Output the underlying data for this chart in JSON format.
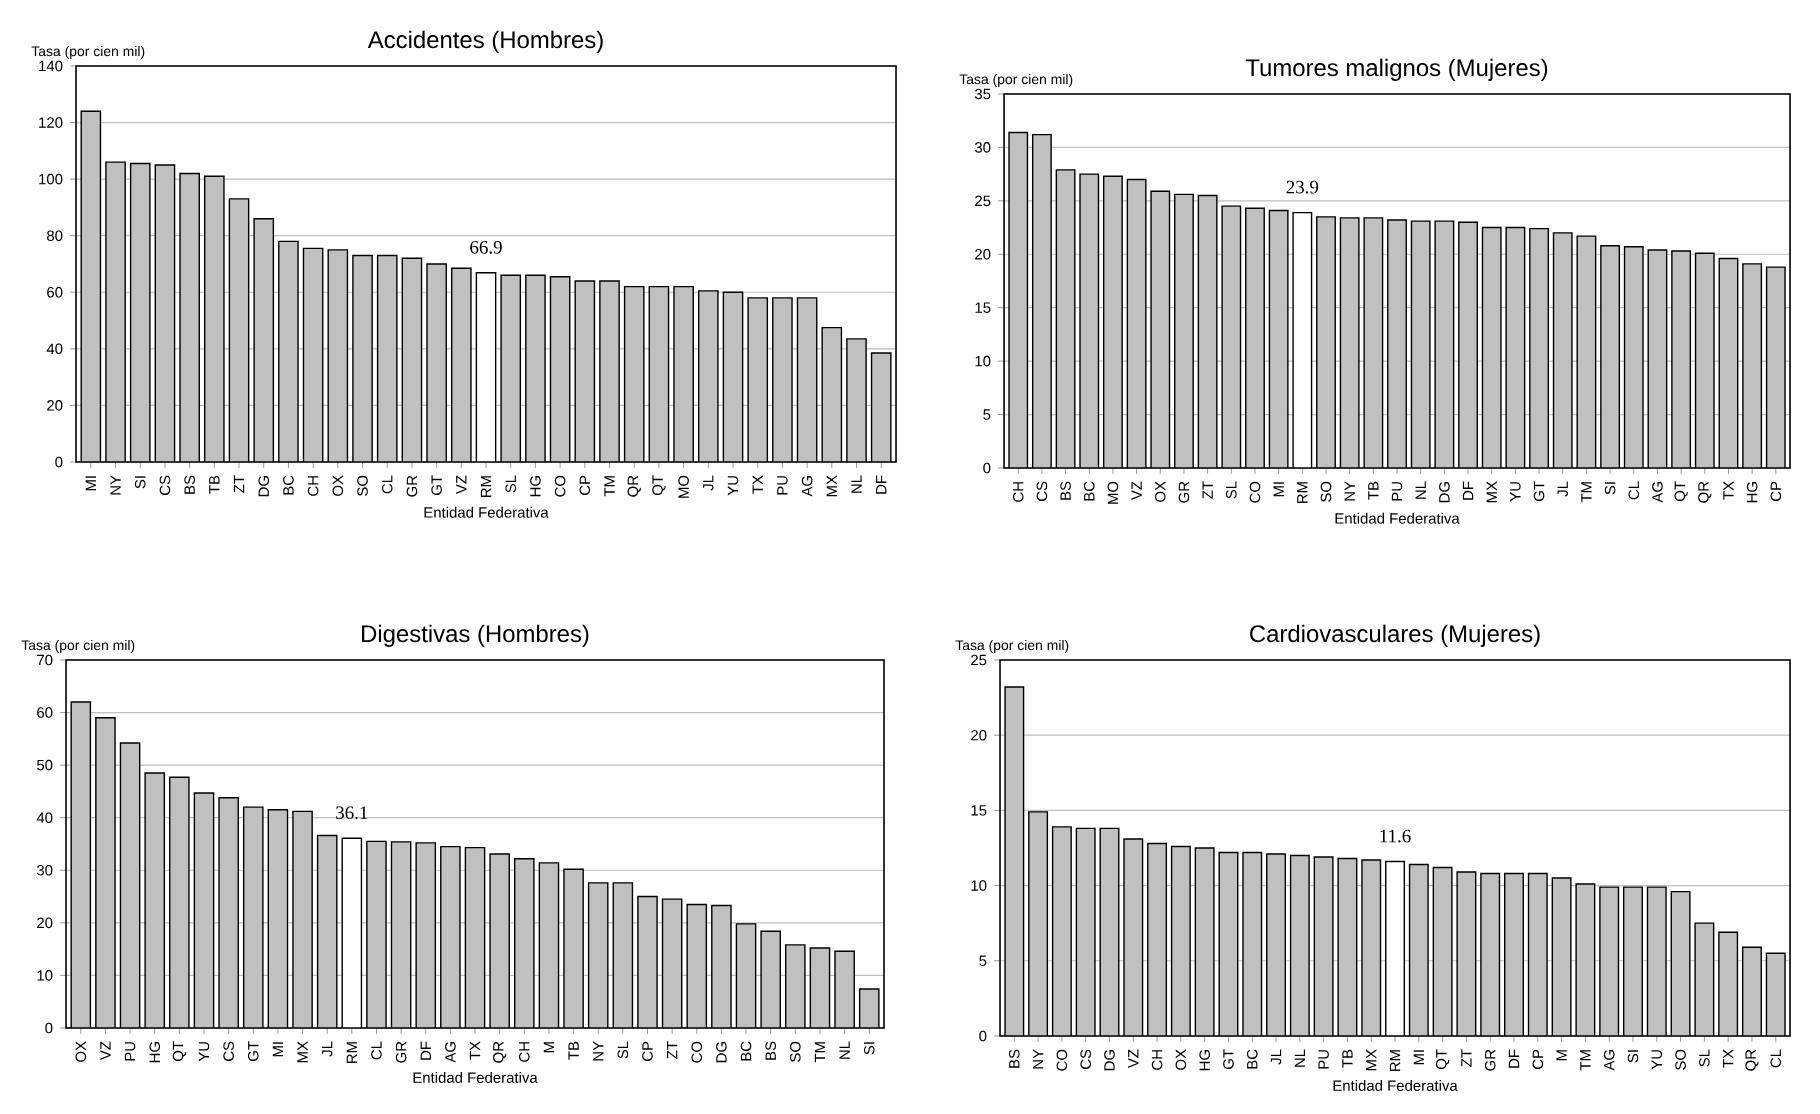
{
  "chart_data": [
    {
      "type": "bar",
      "title": "Accidentes (Hombres)",
      "ylabel": "Tasa (por cien mil)",
      "xlabel": "Entidad Federativa",
      "ylim": [
        0,
        140
      ],
      "yticks": [
        0,
        20,
        40,
        60,
        80,
        100,
        120,
        140
      ],
      "grid": "y",
      "categories": [
        "MI",
        "NY",
        "SI",
        "CS",
        "BS",
        "TB",
        "ZT",
        "DG",
        "BC",
        "CH",
        "OX",
        "SO",
        "CL",
        "GR",
        "GT",
        "VZ",
        "RM",
        "SL",
        "HG",
        "CO",
        "CP",
        "TM",
        "QR",
        "QT",
        "MO",
        "JL",
        "YU",
        "TX",
        "PU",
        "AG",
        "MX",
        "NL",
        "DF"
      ],
      "values": [
        124,
        106,
        105.5,
        105,
        102,
        101,
        93,
        86,
        78,
        75.5,
        75,
        73,
        73,
        72,
        70,
        68.5,
        66.9,
        66,
        66,
        65.5,
        64,
        64,
        62,
        62,
        62,
        60.5,
        60,
        58,
        58,
        58,
        47.5,
        43.5,
        38.5
      ],
      "value_labels": [
        null,
        null,
        null,
        null,
        null,
        null,
        null,
        null,
        null,
        null,
        null,
        null,
        null,
        null,
        null,
        null,
        "66.9",
        null,
        null,
        null,
        null,
        null,
        null,
        null,
        null,
        null,
        null,
        null,
        null,
        null,
        null,
        null,
        null
      ],
      "colors": [
        "#c0c0c0",
        "#c0c0c0",
        "#c0c0c0",
        "#c0c0c0",
        "#c0c0c0",
        "#c0c0c0",
        "#c0c0c0",
        "#c0c0c0",
        "#c0c0c0",
        "#c0c0c0",
        "#c0c0c0",
        "#c0c0c0",
        "#c0c0c0",
        "#c0c0c0",
        "#c0c0c0",
        "#c0c0c0",
        "#ffffff",
        "#c0c0c0",
        "#c0c0c0",
        "#c0c0c0",
        "#c0c0c0",
        "#c0c0c0",
        "#c0c0c0",
        "#c0c0c0",
        "#c0c0c0",
        "#c0c0c0",
        "#c0c0c0",
        "#c0c0c0",
        "#c0c0c0",
        "#c0c0c0",
        "#c0c0c0",
        "#c0c0c0",
        "#c0c0c0"
      ]
    },
    {
      "type": "bar",
      "title": "Tumores malignos (Mujeres)",
      "ylabel": "Tasa (por cien mil)",
      "xlabel": "Entidad Federativa",
      "ylim": [
        0,
        35
      ],
      "yticks": [
        0,
        5,
        10,
        15,
        20,
        25,
        30,
        35
      ],
      "grid": "y",
      "categories": [
        "CH",
        "CS",
        "BS",
        "BC",
        "MO",
        "VZ",
        "OX",
        "GR",
        "ZT",
        "SL",
        "CO",
        "MI",
        "RM",
        "SO",
        "NY",
        "TB",
        "PU",
        "NL",
        "DG",
        "DF",
        "MX",
        "YU",
        "GT",
        "JL",
        "TM",
        "SI",
        "CL",
        "AG",
        "QT",
        "QR",
        "TX",
        "HG",
        "CP"
      ],
      "values": [
        31.4,
        31.2,
        27.9,
        27.5,
        27.3,
        27.0,
        25.9,
        25.6,
        25.5,
        24.5,
        24.3,
        24.1,
        23.9,
        23.5,
        23.4,
        23.4,
        23.2,
        23.1,
        23.1,
        23.0,
        22.5,
        22.5,
        22.4,
        22.0,
        21.7,
        20.8,
        20.7,
        20.4,
        20.3,
        20.1,
        19.6,
        19.1,
        18.8
      ],
      "value_labels": [
        null,
        null,
        null,
        null,
        null,
        null,
        null,
        null,
        null,
        null,
        null,
        null,
        "23.9",
        null,
        null,
        null,
        null,
        null,
        null,
        null,
        null,
        null,
        null,
        null,
        null,
        null,
        null,
        null,
        null,
        null,
        null,
        null,
        null
      ],
      "colors": [
        "#c0c0c0",
        "#c0c0c0",
        "#c0c0c0",
        "#c0c0c0",
        "#c0c0c0",
        "#c0c0c0",
        "#c0c0c0",
        "#c0c0c0",
        "#c0c0c0",
        "#c0c0c0",
        "#c0c0c0",
        "#c0c0c0",
        "#ffffff",
        "#c0c0c0",
        "#c0c0c0",
        "#c0c0c0",
        "#c0c0c0",
        "#c0c0c0",
        "#c0c0c0",
        "#c0c0c0",
        "#c0c0c0",
        "#c0c0c0",
        "#c0c0c0",
        "#c0c0c0",
        "#c0c0c0",
        "#c0c0c0",
        "#c0c0c0",
        "#c0c0c0",
        "#c0c0c0",
        "#c0c0c0",
        "#c0c0c0",
        "#c0c0c0",
        "#c0c0c0"
      ]
    },
    {
      "type": "bar",
      "title": "Digestivas (Hombres)",
      "ylabel": "Tasa (por cien mil)",
      "xlabel": "Entidad Federativa",
      "ylim": [
        0,
        70
      ],
      "yticks": [
        0,
        10,
        20,
        30,
        40,
        50,
        60,
        70
      ],
      "grid": "y",
      "categories": [
        "OX",
        "VZ",
        "PU",
        "HG",
        "QT",
        "YU",
        "CS",
        "GT",
        "MI",
        "MX",
        "JL",
        "RM",
        "CL",
        "GR",
        "DF",
        "AG",
        "TX",
        "QR",
        "CH",
        "M",
        "TB",
        "NY",
        "SL",
        "CP",
        "ZT",
        "CO",
        "DG",
        "BC",
        "BS",
        "SO",
        "TM",
        "NL",
        "SI"
      ],
      "values": [
        62,
        59,
        54.2,
        48.5,
        47.7,
        44.7,
        43.8,
        42,
        41.5,
        41.2,
        36.6,
        36.1,
        35.5,
        35.4,
        35.2,
        34.5,
        34.3,
        33.1,
        32.2,
        31.4,
        30.2,
        27.6,
        27.6,
        25,
        24.5,
        23.5,
        23.3,
        19.8,
        18.4,
        15.8,
        15.2,
        14.6,
        7.4
      ],
      "value_labels": [
        null,
        null,
        null,
        null,
        null,
        null,
        null,
        null,
        null,
        null,
        null,
        "36.1",
        null,
        null,
        null,
        null,
        null,
        null,
        null,
        null,
        null,
        null,
        null,
        null,
        null,
        null,
        null,
        null,
        null,
        null,
        null,
        null,
        null
      ],
      "colors": [
        "#c0c0c0",
        "#c0c0c0",
        "#c0c0c0",
        "#c0c0c0",
        "#c0c0c0",
        "#c0c0c0",
        "#c0c0c0",
        "#c0c0c0",
        "#c0c0c0",
        "#c0c0c0",
        "#c0c0c0",
        "#ffffff",
        "#c0c0c0",
        "#c0c0c0",
        "#c0c0c0",
        "#c0c0c0",
        "#c0c0c0",
        "#c0c0c0",
        "#c0c0c0",
        "#c0c0c0",
        "#c0c0c0",
        "#c0c0c0",
        "#c0c0c0",
        "#c0c0c0",
        "#c0c0c0",
        "#c0c0c0",
        "#c0c0c0",
        "#c0c0c0",
        "#c0c0c0",
        "#c0c0c0",
        "#c0c0c0",
        "#c0c0c0",
        "#c0c0c0"
      ]
    },
    {
      "type": "bar",
      "title": "Cardiovasculares (Mujeres)",
      "ylabel": "Tasa (por cien mil)",
      "xlabel": "Entidad Federativa",
      "ylim": [
        0,
        25
      ],
      "yticks": [
        0,
        5,
        10,
        15,
        20,
        25
      ],
      "grid": "y",
      "categories": [
        "BS",
        "NY",
        "CO",
        "CS",
        "DG",
        "VZ",
        "CH",
        "OX",
        "HG",
        "GT",
        "BC",
        "JL",
        "NL",
        "PU",
        "TB",
        "MX",
        "RM",
        "MI",
        "QT",
        "ZT",
        "GR",
        "DF",
        "CP",
        "M",
        "TM",
        "AG",
        "SI",
        "YU",
        "SO",
        "SL",
        "TX",
        "QR",
        "CL"
      ],
      "values": [
        23.2,
        14.9,
        13.9,
        13.8,
        13.8,
        13.1,
        12.8,
        12.6,
        12.5,
        12.2,
        12.2,
        12.1,
        12.0,
        11.9,
        11.8,
        11.7,
        11.6,
        11.4,
        11.2,
        10.9,
        10.8,
        10.8,
        10.8,
        10.5,
        10.1,
        9.9,
        9.9,
        9.9,
        9.6,
        7.5,
        6.9,
        5.9,
        5.5
      ],
      "value_labels": [
        null,
        null,
        null,
        null,
        null,
        null,
        null,
        null,
        null,
        null,
        null,
        null,
        null,
        null,
        null,
        null,
        "11.6",
        null,
        null,
        null,
        null,
        null,
        null,
        null,
        null,
        null,
        null,
        null,
        null,
        null,
        null,
        null,
        null
      ],
      "colors": [
        "#c0c0c0",
        "#c0c0c0",
        "#c0c0c0",
        "#c0c0c0",
        "#c0c0c0",
        "#c0c0c0",
        "#c0c0c0",
        "#c0c0c0",
        "#c0c0c0",
        "#c0c0c0",
        "#c0c0c0",
        "#c0c0c0",
        "#c0c0c0",
        "#c0c0c0",
        "#c0c0c0",
        "#c0c0c0",
        "#ffffff",
        "#c0c0c0",
        "#c0c0c0",
        "#c0c0c0",
        "#c0c0c0",
        "#c0c0c0",
        "#c0c0c0",
        "#c0c0c0",
        "#c0c0c0",
        "#c0c0c0",
        "#c0c0c0",
        "#c0c0c0",
        "#c0c0c0",
        "#c0c0c0",
        "#c0c0c0",
        "#c0c0c0",
        "#c0c0c0"
      ]
    }
  ]
}
